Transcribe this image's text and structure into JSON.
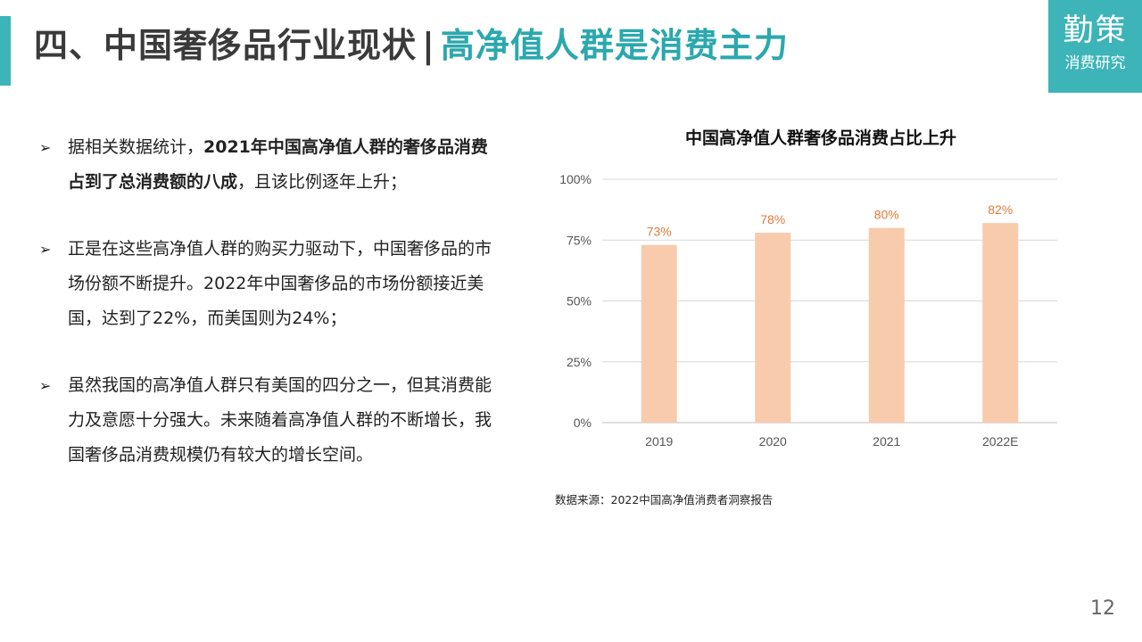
{
  "header": {
    "title_main": "四、中国奢侈品行业现状",
    "title_sep": "|",
    "title_sub": "高净值人群是消费主力"
  },
  "logo": {
    "brand": "勤策",
    "sub": "消费研究"
  },
  "bullets": [
    {
      "plain1": "据相关数据统计，",
      "bold": "2021年中国高净值人群的奢侈品消费占到了总消费额的八成",
      "plain2": "，且该比例逐年上升；"
    },
    {
      "text": "正是在这些高净值人群的购买力驱动下，中国奢侈品的市场份额不断提升。2022年中国奢侈品的市场份额接近美国，达到了22%，而美国则为24%；"
    },
    {
      "text": "虽然我国的高净值人群只有美国的四分之一，但其消费能力及意愿十分强大。未来随着高净值人群的不断增长，我国奢侈品消费规模仍有较大的增长空间。"
    }
  ],
  "bullet_marker": "➢",
  "chart_data": {
    "type": "bar",
    "title": "中国高净值人群奢侈品消费占比上升",
    "categories": [
      "2019",
      "2020",
      "2021",
      "2022E"
    ],
    "values": [
      73,
      78,
      80,
      82
    ],
    "value_labels": [
      "73%",
      "78%",
      "80%",
      "82%"
    ],
    "yticks": [
      0,
      25,
      50,
      75,
      100
    ],
    "ytick_labels": [
      "0%",
      "25%",
      "50%",
      "75%",
      "100%"
    ],
    "ylim": [
      0,
      100
    ],
    "xlabel": "",
    "ylabel": "",
    "grid": true,
    "bar_color": "#f8cbad",
    "label_color": "#e07b39"
  },
  "source": "数据来源：2022中国高净值消费者洞察报告",
  "page_number": "12",
  "colors": {
    "accent": "#3cb4b8",
    "title_sub": "#2ba8ad"
  }
}
